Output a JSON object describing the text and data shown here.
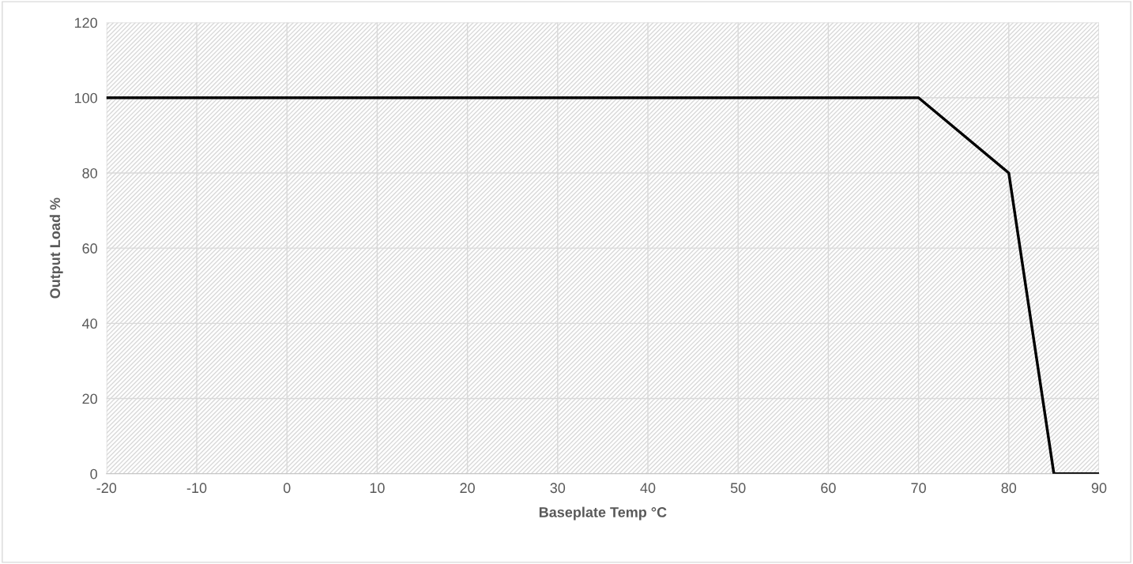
{
  "chart_data": {
    "type": "line",
    "xlabel": "Baseplate Temp °C",
    "ylabel": "Output Load %",
    "x": [
      -20,
      70,
      80,
      85,
      90
    ],
    "series": [
      {
        "color": "#000000",
        "values": [
          100,
          100,
          80,
          0,
          0
        ]
      }
    ],
    "xlim": [
      -20,
      90
    ],
    "xticks": [
      -20,
      -10,
      0,
      10,
      20,
      30,
      40,
      50,
      60,
      70,
      80,
      90
    ],
    "ylim": [
      0,
      120
    ],
    "yticks": [
      0,
      20,
      40,
      60,
      80,
      100,
      120
    ],
    "grid": true,
    "marker": "none",
    "line_style": "solid"
  }
}
